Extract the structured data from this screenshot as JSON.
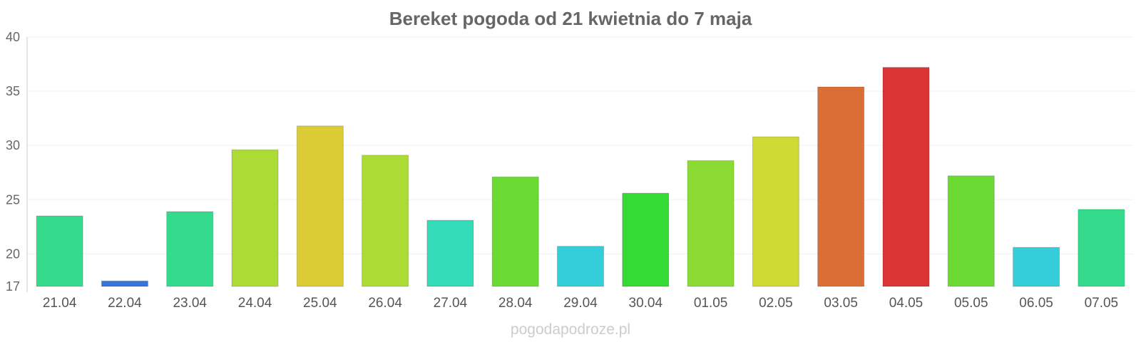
{
  "chart_data": {
    "type": "bar",
    "title": "Bereket pogoda od 21 kwietnia do 7 maja",
    "xlabel": "",
    "ylabel": "",
    "ylim": [
      17,
      40
    ],
    "yticks": [
      17,
      20,
      25,
      30,
      35,
      40
    ],
    "grid": true,
    "categories": [
      "21.04",
      "22.04",
      "23.04",
      "24.04",
      "25.04",
      "26.04",
      "27.04",
      "28.04",
      "29.04",
      "30.04",
      "01.05",
      "02.05",
      "03.05",
      "04.05",
      "05.05",
      "06.05",
      "07.05"
    ],
    "values": [
      23.5,
      17.5,
      23.9,
      29.6,
      31.8,
      29.1,
      23.1,
      27.1,
      20.7,
      25.6,
      28.6,
      30.8,
      35.4,
      37.2,
      27.2,
      20.6,
      24.1
    ],
    "colors": [
      "#34db8c",
      "#3476db",
      "#34db8c",
      "#abdb34",
      "#dbcb34",
      "#abdb34",
      "#34dbb9",
      "#6bdb34",
      "#34cedb",
      "#34db34",
      "#8bdb34",
      "#cfdb34",
      "#db6e34",
      "#db3434",
      "#6bdb34",
      "#34cedb",
      "#34db8c"
    ]
  },
  "watermark": "pogodapodroze.pl"
}
